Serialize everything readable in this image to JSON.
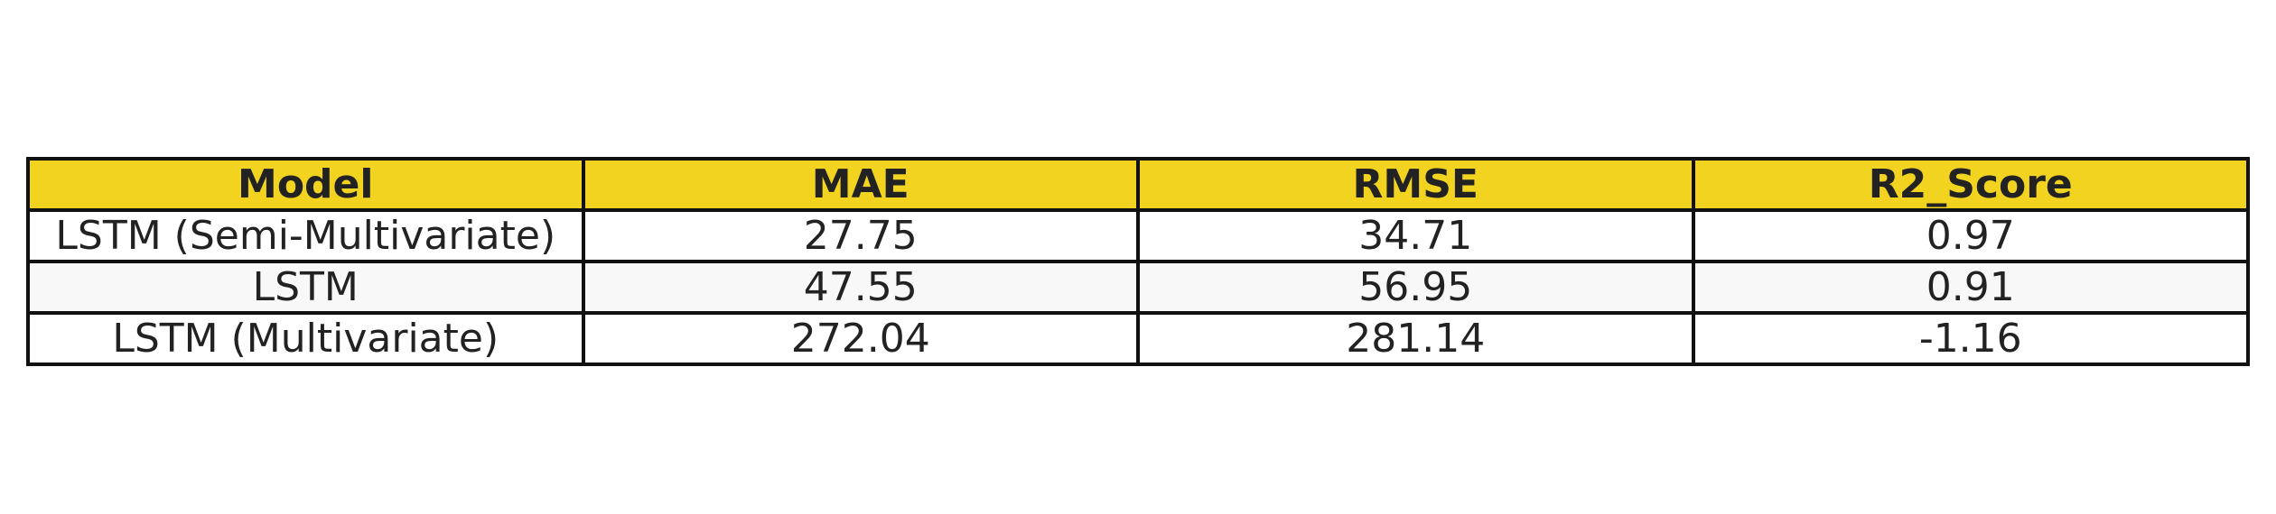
{
  "chart_data": {
    "type": "table",
    "columns": [
      "Model",
      "MAE",
      "RMSE",
      "R2_Score"
    ],
    "rows": [
      [
        "LSTM (Semi-Multivariate)",
        "27.75",
        "34.71",
        "0.97"
      ],
      [
        "LSTM",
        "47.55",
        "56.95",
        "0.91"
      ],
      [
        "LSTM (Multivariate)",
        "272.04",
        "281.14",
        "-1.16"
      ]
    ],
    "colors": {
      "header_background": "#f1d320",
      "border": "#111111",
      "text": "#222222",
      "alt_row_background": "#f8f8f8"
    }
  }
}
